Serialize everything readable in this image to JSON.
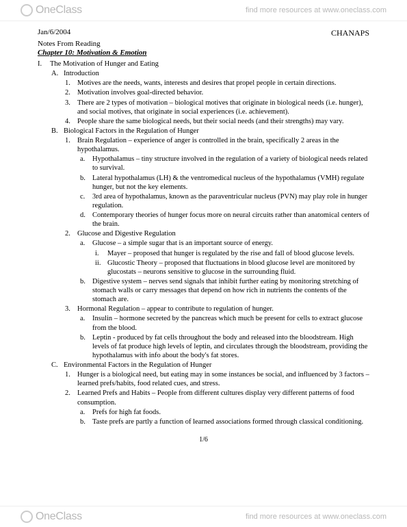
{
  "watermark": {
    "logo_name": "OneClass",
    "tagline": "find more resources at www.oneclass.com"
  },
  "header": {
    "date": "Jan/6/2004",
    "course": "CHANAPS",
    "subtitle": "Notes From Reading",
    "chapter": "Chapter 10:  Motivation & Emotion"
  },
  "outline": [
    {
      "lvl": "i",
      "m": "I.",
      "t": "The Motivation of Hunger and Eating"
    },
    {
      "lvl": "a",
      "m": "A.",
      "t": "Introduction"
    },
    {
      "lvl": "1",
      "m": "1.",
      "t": "Motives are the needs, wants, interests and desires that propel people in certain directions."
    },
    {
      "lvl": "1",
      "m": "2.",
      "t": "Motivation involves goal-directed behavior."
    },
    {
      "lvl": "1",
      "m": "3.",
      "t": "There are 2 types of motivation – biological motives that originate in biological needs (i.e. hunger), and social motives, that originate in social experiences (i.e. achievement)."
    },
    {
      "lvl": "1",
      "m": "4.",
      "t": "People share the same biological needs, but their social needs (and their strengths) may vary."
    },
    {
      "lvl": "a",
      "m": "B.",
      "t": "Biological Factors in the Regulation of Hunger"
    },
    {
      "lvl": "1",
      "m": "1.",
      "t": "Brain Regulation – experience of anger is controlled in the brain, specifically 2 areas in the hypothalamus."
    },
    {
      "lvl": "la",
      "m": "a.",
      "t": "Hypothalamus – tiny structure involved in the regulation of a variety of biological needs related to survival."
    },
    {
      "lvl": "la",
      "m": "b.",
      "t": "Lateral hypothalamus (LH) & the ventromedical nucleus of the hypothalamus (VMH) regulate hunger, but not the key elements."
    },
    {
      "lvl": "la",
      "m": "c.",
      "t": "3rd area of hypothalamus, known as the paraventricular nucleus (PVN) may play role in hunger regulation."
    },
    {
      "lvl": "la",
      "m": "d.",
      "t": "Contemporary theories of hunger focus more on neural circuits rather than anatomical centers of the brain."
    },
    {
      "lvl": "1",
      "m": "2.",
      "t": "Glucose and Digestive Regulation"
    },
    {
      "lvl": "la",
      "m": "a.",
      "t": "Glucose – a simple sugar that is an important source of energy."
    },
    {
      "lvl": "ri",
      "m": "i.",
      "t": "Mayer – proposed that hunger is regulated by the rise and fall of blood glucose levels."
    },
    {
      "lvl": "ri",
      "m": "ii.",
      "t": "Glucostic Theory – proposed that fluctuations in blood glucose level are monitored by glucostats – neurons sensitive to glucose in the surrounding fluid."
    },
    {
      "lvl": "la",
      "m": "b.",
      "t": "Digestive system – nerves send signals that inhibit further eating by monitoring stretching of stomach walls or carry messages that depend on how rich in nutrients the contents of the stomach are."
    },
    {
      "lvl": "1",
      "m": "3.",
      "t": "Hormonal Regulation – appear to contribute to regulation of hunger."
    },
    {
      "lvl": "la",
      "m": "a.",
      "t": "Insulin – hormone secreted by the pancreas which much be present for cells to extract glucose from the blood."
    },
    {
      "lvl": "la",
      "m": "b.",
      "t": "Leptin - produced by fat cells throughout the body and released into the bloodstream. High levels of fat produce high levels of leptin, and circulates through the bloodstream, providing the hypothalamus with info about the body's fat stores."
    },
    {
      "lvl": "a",
      "m": "C.",
      "t": "Environmental Factors in the Regulation of Hunger"
    },
    {
      "lvl": "1",
      "m": "1.",
      "t": "Hunger is a biological need, but eating may in some instances be social, and influenced by 3 factors – learned prefs/habits, food related cues, and stress."
    },
    {
      "lvl": "1",
      "m": "2.",
      "t": "Learned Prefs and Habits – People from different cultures display very different patterns of food consumption."
    },
    {
      "lvl": "la",
      "m": "a.",
      "t": "Prefs for high fat foods."
    },
    {
      "lvl": "la",
      "m": "b.",
      "t": "Taste prefs are partly a function of learned associations formed through classical conditioning."
    }
  ],
  "page_number": "1/6"
}
